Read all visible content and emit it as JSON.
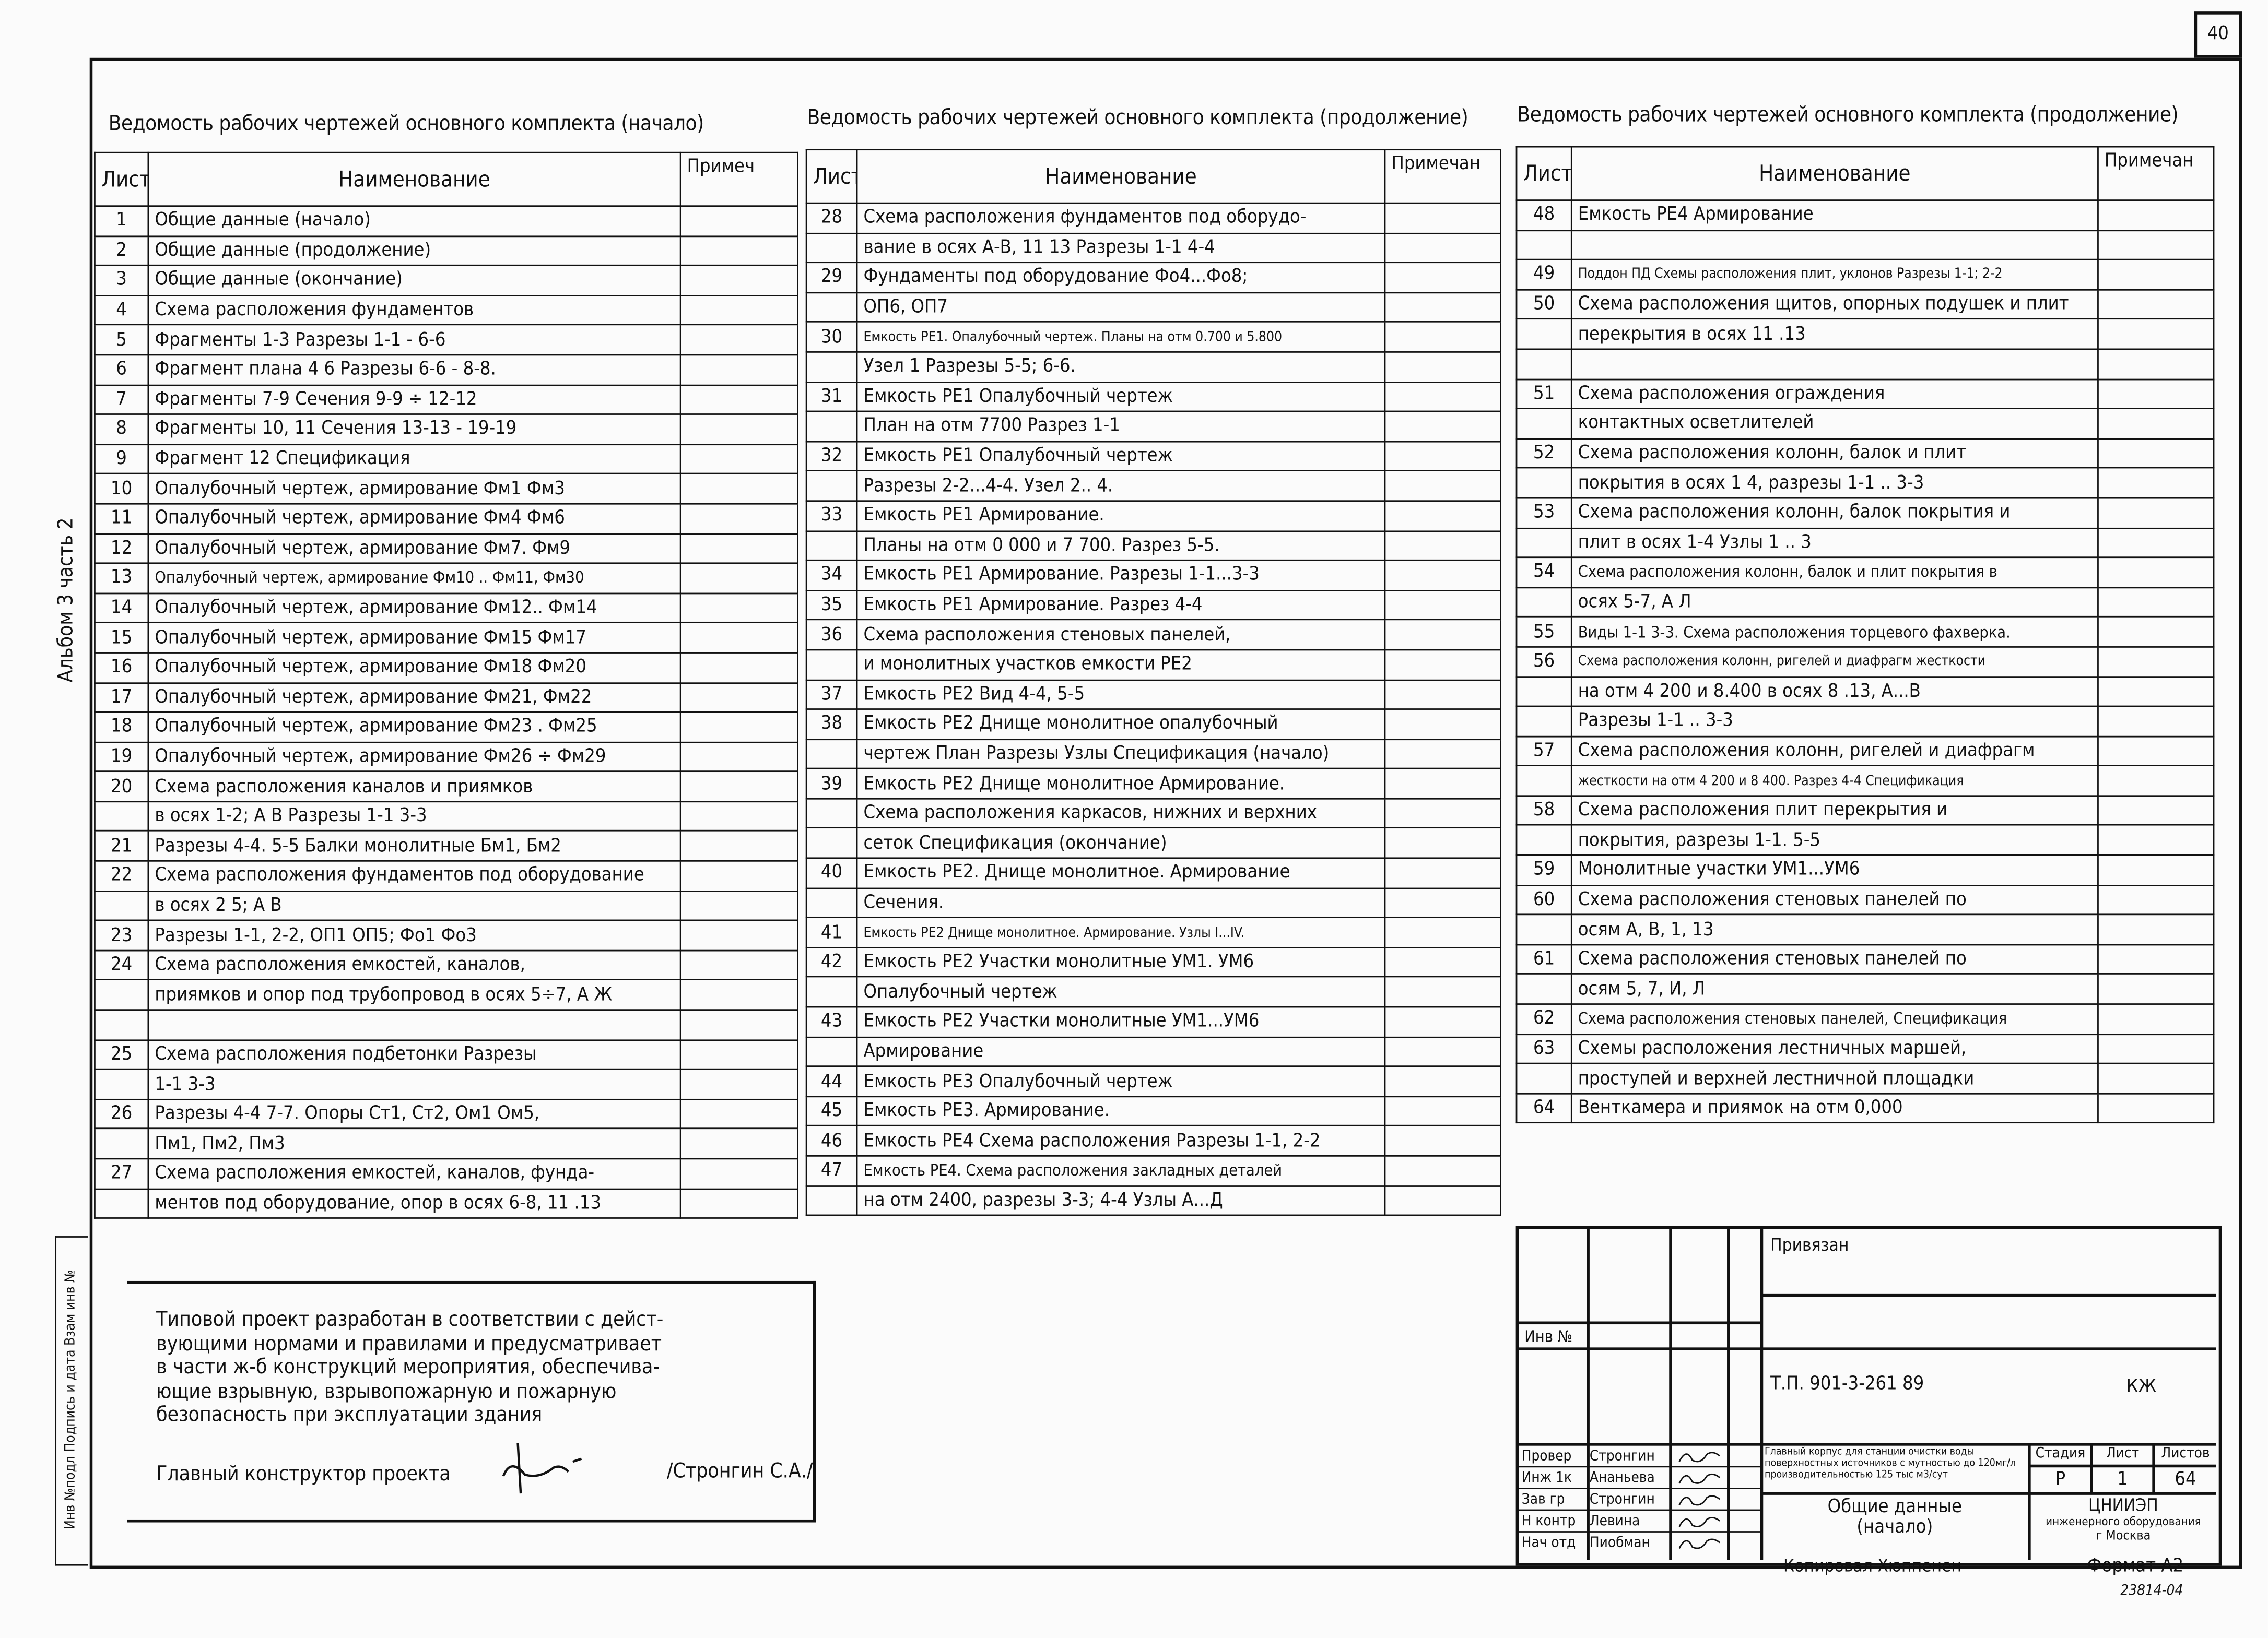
{
  "page_number": "40",
  "album_label": "Альбом 3 часть 2",
  "binding_strip": "Инв №подл   Подпись и дата   Взам инв №",
  "tables": [
    {
      "title": "Ведомость рабочих чертежей основного комплекта (начало)",
      "headers": {
        "sheet": "Лист",
        "name": "Наименование",
        "note": "Примеч"
      },
      "rows": [
        {
          "n": "1",
          "lines": [
            "Общие данные (начало)"
          ]
        },
        {
          "n": "2",
          "lines": [
            "Общие данные (продолжение)"
          ]
        },
        {
          "n": "3",
          "lines": [
            "Общие данные (окончание)"
          ]
        },
        {
          "n": "4",
          "lines": [
            "Схема расположения фундаментов"
          ]
        },
        {
          "n": "5",
          "lines": [
            "Фрагменты 1-3  Разрезы 1-1 - 6-6"
          ]
        },
        {
          "n": "6",
          "lines": [
            "Фрагмент плана 4 6  Разрезы 6-6 - 8-8."
          ]
        },
        {
          "n": "7",
          "lines": [
            "Фрагменты 7-9  Сечения 9-9 ÷ 12-12"
          ]
        },
        {
          "n": "8",
          "lines": [
            "Фрагменты 10, 11  Сечения 13-13 - 19-19"
          ]
        },
        {
          "n": "9",
          "lines": [
            "Фрагмент 12  Спецификация"
          ]
        },
        {
          "n": "10",
          "lines": [
            "Опалубочный чертеж, армирование Фм1  Фм3"
          ]
        },
        {
          "n": "11",
          "lines": [
            "Опалубочный чертеж, армирование Фм4  Фм6"
          ]
        },
        {
          "n": "12",
          "lines": [
            "Опалубочный чертеж, армирование Фм7. Фм9"
          ]
        },
        {
          "n": "13",
          "lines": [
            "Опалубочный чертеж, армирование Фм10 .. Фм11, Фм30"
          ]
        },
        {
          "n": "14",
          "lines": [
            "Опалубочный чертеж, армирование Фм12.. Фм14"
          ]
        },
        {
          "n": "15",
          "lines": [
            "Опалубочный чертеж, армирование Фм15  Фм17"
          ]
        },
        {
          "n": "16",
          "lines": [
            "Опалубочный чертеж, армирование Фм18  Фм20"
          ]
        },
        {
          "n": "17",
          "lines": [
            "Опалубочный чертеж, армирование Фм21, Фм22"
          ]
        },
        {
          "n": "18",
          "lines": [
            "Опалубочный чертеж, армирование Фм23 . Фм25"
          ]
        },
        {
          "n": "19",
          "lines": [
            "Опалубочный чертеж, армирование Фм26 ÷ Фм29"
          ]
        },
        {
          "n": "20",
          "lines": [
            "Схема расположения каналов и приямков",
            "в осях 1-2; А В  Разрезы 1-1  3-3"
          ]
        },
        {
          "n": "21",
          "lines": [
            "Разрезы 4-4. 5-5 Балки монолитные Бм1, Бм2"
          ]
        },
        {
          "n": "22",
          "lines": [
            "Схема расположения фундаментов под оборудование",
            "в осях 2 5; А  В"
          ]
        },
        {
          "n": "23",
          "lines": [
            "Разрезы 1-1, 2-2, ОП1  ОП5; Фо1  Фо3"
          ]
        },
        {
          "n": "24",
          "lines": [
            "Схема расположения емкостей, каналов,",
            "приямков и опор под трубопровод в осях 5÷7, А  Ж",
            ""
          ]
        },
        {
          "n": "25",
          "lines": [
            "Схема расположения подбетонки Разрезы",
            "1-1  3-3"
          ]
        },
        {
          "n": "26",
          "lines": [
            "Разрезы 4-4  7-7. Опоры Ст1, Ст2, Ом1  Ом5,",
            "Пм1, Пм2, Пм3"
          ]
        },
        {
          "n": "27",
          "lines": [
            "Схема расположения емкостей, каналов, фунда-",
            "ментов под оборудование, опор в осях 6-8, 11 .13"
          ]
        }
      ]
    },
    {
      "title": "Ведомость рабочих чертежей основного комплекта (продолжение)",
      "headers": {
        "sheet": "Лист",
        "name": "Наименование",
        "note": "Примечан"
      },
      "rows": [
        {
          "n": "28",
          "lines": [
            "Схема расположения фундаментов под оборудо-",
            "вание в осях А-В, 11 13 Разрезы 1-1  4-4"
          ]
        },
        {
          "n": "29",
          "lines": [
            "Фундаменты под оборудование Фо4...Фо8;",
            "ОП6, ОП7"
          ]
        },
        {
          "n": "30",
          "lines": [
            "Емкость РЕ1. Опалубочный чертеж. Планы на отм 0.700 и 5.800",
            "Узел 1  Разрезы 5-5; 6-6."
          ]
        },
        {
          "n": "31",
          "lines": [
            "Емкость РЕ1  Опалубочный чертеж",
            "План на отм 7700  Разрез 1-1"
          ]
        },
        {
          "n": "32",
          "lines": [
            "Емкость РЕ1  Опалубочный чертеж",
            "Разрезы 2-2...4-4.    Узел 2.. 4."
          ]
        },
        {
          "n": "33",
          "lines": [
            "Емкость РЕ1  Армирование.",
            "Планы на отм 0 000 и 7 700. Разрез 5-5."
          ]
        },
        {
          "n": "34",
          "lines": [
            "Емкость РЕ1  Армирование. Разрезы 1-1...3-3"
          ]
        },
        {
          "n": "35",
          "lines": [
            "Емкость РЕ1  Армирование. Разрез 4-4"
          ]
        },
        {
          "n": "36",
          "lines": [
            "Схема расположения стеновых панелей,",
            "и монолитных участков емкости РЕ2"
          ]
        },
        {
          "n": "37",
          "lines": [
            "Емкость РЕ2  Вид 4-4, 5-5"
          ]
        },
        {
          "n": "38",
          "lines": [
            "Емкость РЕ2  Днище монолитное опалубочный",
            "чертеж План Разрезы Узлы Спецификация (начало)"
          ]
        },
        {
          "n": "39",
          "lines": [
            "Емкость РЕ2  Днище монолитное Армирование.",
            "Схема расположения каркасов, нижних и верхних",
            "сеток Спецификация (окончание)"
          ]
        },
        {
          "n": "40",
          "lines": [
            "Емкость РЕ2. Днище монолитное. Армирование",
            "Сечения."
          ]
        },
        {
          "n": "41",
          "lines": [
            "Емкость РЕ2  Днище монолитное. Армирование. Узлы I...IV."
          ]
        },
        {
          "n": "42",
          "lines": [
            "Емкость РЕ2  Участки монолитные УМ1. УМ6",
            "Опалубочный чертеж"
          ]
        },
        {
          "n": "43",
          "lines": [
            "Емкость РЕ2  Участки монолитные УМ1...УМ6",
            "Армирование"
          ]
        },
        {
          "n": "44",
          "lines": [
            "Емкость РЕ3  Опалубочный чертеж"
          ]
        },
        {
          "n": "45",
          "lines": [
            "Емкость РЕ3. Армирование."
          ]
        },
        {
          "n": "46",
          "lines": [
            "Емкость РЕ4  Схема расположения Разрезы 1-1, 2-2"
          ]
        },
        {
          "n": "47",
          "lines": [
            "Емкость РЕ4. Схема расположения закладных деталей",
            "на отм 2400, разрезы 3-3; 4-4  Узлы А...Д"
          ]
        }
      ]
    },
    {
      "title": "Ведомость рабочих чертежей основного комплекта (продолжение)",
      "headers": {
        "sheet": "Лист",
        "name": "Наименование",
        "note": "Примечан"
      },
      "rows": [
        {
          "n": "48",
          "lines": [
            "Емкость РЕ4  Армирование",
            ""
          ]
        },
        {
          "n": "49",
          "lines": [
            "Поддон ПД Схемы расположения плит, уклонов Разрезы 1-1; 2-2"
          ]
        },
        {
          "n": "50",
          "lines": [
            "Схема расположения щитов, опорных подушек и плит",
            "перекрытия в осях 11 .13",
            ""
          ]
        },
        {
          "n": "51",
          "lines": [
            "Схема расположения ограждения",
            "контактных осветлителей"
          ]
        },
        {
          "n": "52",
          "lines": [
            "Схема расположения колонн, балок и плит",
            "покрытия в осях 1  4, разрезы 1-1 .. 3-3"
          ]
        },
        {
          "n": "53",
          "lines": [
            "Схема расположения колонн, балок покрытия и",
            "плит в осях 1-4  Узлы 1 .. 3"
          ]
        },
        {
          "n": "54",
          "lines": [
            "Схема расположения колонн, балок и плит покрытия в",
            "осях 5-7, А  Л"
          ]
        },
        {
          "n": "55",
          "lines": [
            "Виды 1-1  3-3. Схема расположения торцевого фахверка."
          ]
        },
        {
          "n": "56",
          "lines": [
            "Схема расположения колонн, ригелей и диафрагм жесткости",
            "на отм 4 200 и 8.400 в осях 8 .13, А...В",
            "Разрезы 1-1 .. 3-3"
          ]
        },
        {
          "n": "57",
          "lines": [
            "Схема расположения колонн, ригелей и диафрагм",
            "жесткости на отм 4 200 и 8 400. Разрез 4-4 Спецификация"
          ]
        },
        {
          "n": "58",
          "lines": [
            "Схема расположения плит перекрытия и",
            "покрытия, разрезы 1-1. 5-5"
          ]
        },
        {
          "n": "59",
          "lines": [
            "Монолитные участки УМ1...УМ6"
          ]
        },
        {
          "n": "60",
          "lines": [
            "Схема расположения стеновых панелей по",
            "осям А, В, 1, 13"
          ]
        },
        {
          "n": "61",
          "lines": [
            "Схема расположения стеновых панелей по",
            "осям 5, 7, И, Л"
          ]
        },
        {
          "n": "62",
          "lines": [
            "Схема расположения стеновых панелей, Спецификация"
          ]
        },
        {
          "n": "63",
          "lines": [
            "Схемы расположения лестничных маршей,",
            "проступей и верхней лестничной площадки"
          ]
        },
        {
          "n": "64",
          "lines": [
            "Венткамера и приямок на отм 0,000"
          ]
        }
      ]
    }
  ],
  "note": {
    "lines": [
      "Типовой проект разработан в соответствии с дейст-",
      "вующими нормами и правилами и предусматривает",
      "в части ж-б конструкций мероприятия, обеспечива-",
      "ющие взрывную, взрывопожарную и пожарную",
      "безопасность при эксплуатации здания"
    ],
    "signer_role": "Главный конструктор проекта",
    "signer_name": "/Стронгин С.А./"
  },
  "title_block": {
    "attached": "Привязан",
    "inv_no": "Инв №",
    "project_code": "Т.П. 901-3-261 89",
    "mark": "КЖ",
    "signatories": [
      {
        "role": "Провер",
        "name": "Стронгин"
      },
      {
        "role": "Инж 1к",
        "name": "Ананьева"
      },
      {
        "role": "Зав гр",
        "name": "Стронгин"
      },
      {
        "role": "Н контр",
        "name": "Левина"
      },
      {
        "role": "Нач отд",
        "name": "Пиобман"
      }
    ],
    "project_name": "Главный корпус для станции очистки воды поверхностных источников с мутностью до 120мг/л производительностью 125 тыс м3/сут",
    "sheet_title_1": "Общие данные",
    "sheet_title_2": "(начало)",
    "stage_label": "Стадия",
    "sheet_label": "Лист",
    "sheets_label": "Листов",
    "stage": "Р",
    "sheet": "1",
    "sheets": "64",
    "org_1": "ЦНИИЭП",
    "org_2": "инженерного оборудования",
    "org_3": "г Москва",
    "copied_by": "Копировал Хюппенен",
    "format": "Формат А2",
    "archive_no": "23814-04"
  }
}
